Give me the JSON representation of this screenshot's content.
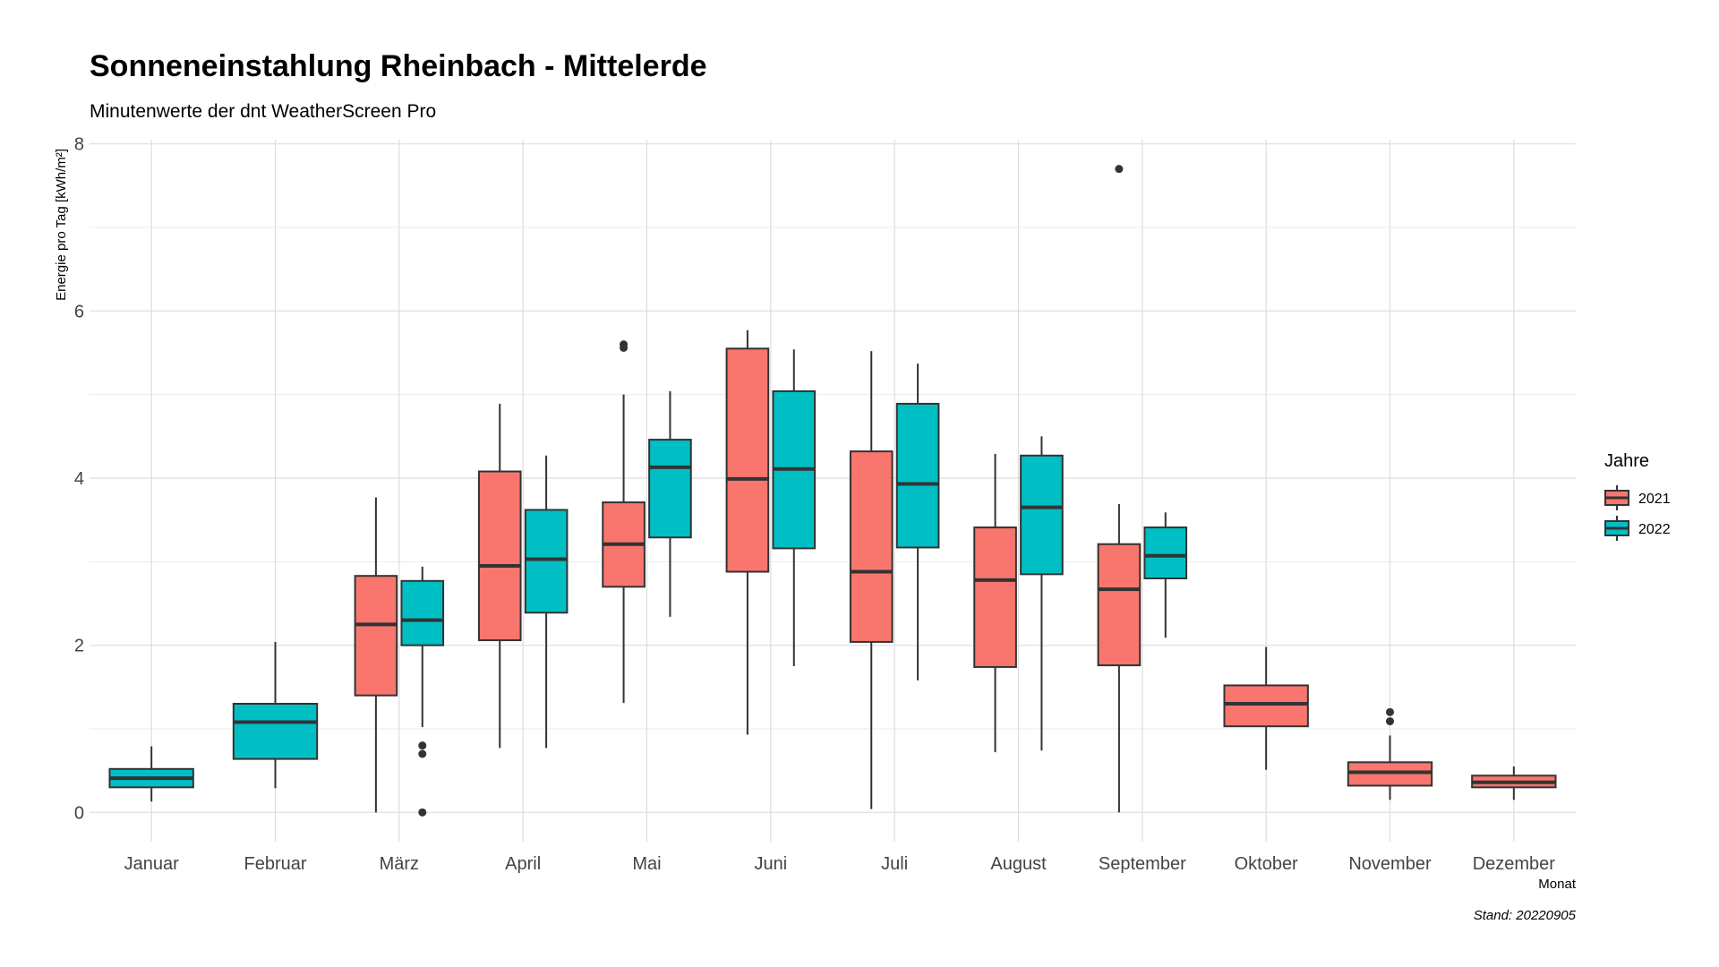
{
  "chart_data": {
    "type": "boxplot",
    "title": "Sonneneinstahlung Rheinbach - Mittelerde",
    "subtitle": "Minutenwerte der dnt WeatherScreen Pro",
    "xlabel": "Monat",
    "ylabel": "Energie pro Tag [kWh/m²]",
    "caption": "Stand: 20220905",
    "ylim": [
      -0.35,
      8.05
    ],
    "yticks": [
      0,
      2,
      4,
      6,
      8
    ],
    "grid": true,
    "legend": {
      "title": "Jahre",
      "position": "right"
    },
    "categories": [
      "Januar",
      "Februar",
      "März",
      "April",
      "Mai",
      "Juni",
      "Juli",
      "August",
      "September",
      "Oktober",
      "November",
      "Dezember"
    ],
    "series": [
      {
        "name": "2021",
        "color": "#F8766D",
        "boxes": [
          null,
          null,
          {
            "min": 0.0,
            "q1": 1.4,
            "median": 2.25,
            "q3": 2.83,
            "max": 3.77,
            "outliers": []
          },
          {
            "min": 0.77,
            "q1": 2.06,
            "median": 2.95,
            "q3": 4.08,
            "max": 4.89,
            "outliers": []
          },
          {
            "min": 1.31,
            "q1": 2.7,
            "median": 3.21,
            "q3": 3.71,
            "max": 5.0,
            "outliers": [
              5.56,
              5.6
            ]
          },
          {
            "min": 0.93,
            "q1": 2.88,
            "median": 3.99,
            "q3": 5.55,
            "max": 5.77,
            "outliers": []
          },
          {
            "min": 0.04,
            "q1": 2.04,
            "median": 2.88,
            "q3": 4.32,
            "max": 5.52,
            "outliers": []
          },
          {
            "min": 0.72,
            "q1": 1.74,
            "median": 2.78,
            "q3": 3.41,
            "max": 4.29,
            "outliers": []
          },
          {
            "min": 0.0,
            "q1": 1.76,
            "median": 2.67,
            "q3": 3.21,
            "max": 3.69,
            "outliers": [
              7.7
            ]
          },
          {
            "min": 0.51,
            "q1": 1.03,
            "median": 1.3,
            "q3": 1.52,
            "max": 1.98,
            "outliers": []
          },
          {
            "min": 0.15,
            "q1": 0.32,
            "median": 0.48,
            "q3": 0.6,
            "max": 0.92,
            "outliers": [
              1.09,
              1.2
            ]
          },
          {
            "min": 0.15,
            "q1": 0.3,
            "median": 0.36,
            "q3": 0.44,
            "max": 0.55,
            "outliers": []
          }
        ]
      },
      {
        "name": "2022",
        "color": "#00BFC4",
        "boxes": [
          {
            "min": 0.13,
            "q1": 0.3,
            "median": 0.41,
            "q3": 0.52,
            "max": 0.79,
            "outliers": []
          },
          {
            "min": 0.29,
            "q1": 0.64,
            "median": 1.08,
            "q3": 1.3,
            "max": 2.04,
            "outliers": []
          },
          {
            "min": 1.02,
            "q1": 2.0,
            "median": 2.3,
            "q3": 2.77,
            "max": 2.94,
            "outliers": [
              0.8,
              0.7,
              0.0
            ]
          },
          {
            "min": 0.77,
            "q1": 2.39,
            "median": 3.03,
            "q3": 3.62,
            "max": 4.27,
            "outliers": []
          },
          {
            "min": 2.34,
            "q1": 3.29,
            "median": 4.13,
            "q3": 4.46,
            "max": 5.04,
            "outliers": []
          },
          {
            "min": 1.75,
            "q1": 3.16,
            "median": 4.11,
            "q3": 5.04,
            "max": 5.54,
            "outliers": []
          },
          {
            "min": 1.58,
            "q1": 3.17,
            "median": 3.93,
            "q3": 4.89,
            "max": 5.37,
            "outliers": []
          },
          {
            "min": 0.74,
            "q1": 2.85,
            "median": 3.65,
            "q3": 4.27,
            "max": 4.5,
            "outliers": []
          },
          {
            "min": 2.09,
            "q1": 2.8,
            "median": 3.07,
            "q3": 3.41,
            "max": 3.59,
            "outliers": []
          },
          null,
          null,
          null
        ]
      }
    ]
  }
}
